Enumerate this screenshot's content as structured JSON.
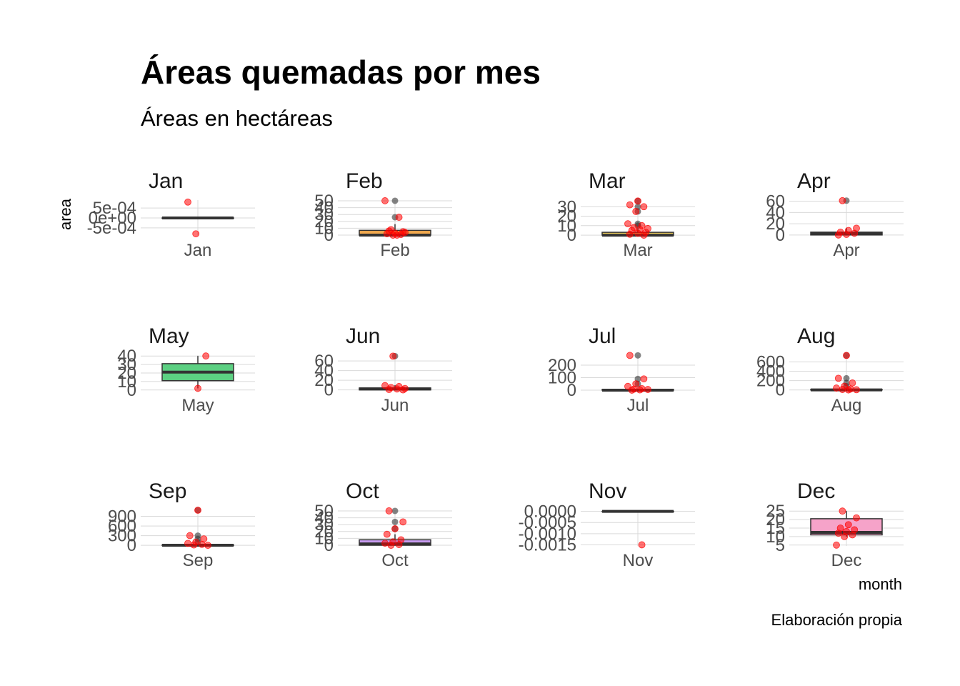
{
  "chart_data": {
    "type": "boxplot",
    "title": "Áreas quemadas por mes",
    "subtitle": "Áreas en hectáreas",
    "xlabel": "month",
    "ylabel": "area",
    "caption": "Elaboración propia",
    "facet_scales": "free",
    "grid": true,
    "point_color": "#ff0000",
    "outlier_color": "#333333",
    "panels": [
      {
        "month": "Jan",
        "fill": "#f8766d",
        "yticks": [
          "5e-04",
          "0e+00",
          "-5e-04"
        ],
        "ytick_values": [
          0.0005,
          0,
          -0.0005
        ],
        "ylim": [
          -0.0009,
          0.0009
        ],
        "box": {
          "min": 0,
          "q1": 0,
          "median": 0,
          "q3": 0,
          "max": 0
        },
        "outliers": [],
        "points": [
          0.0008,
          -0.0008
        ]
      },
      {
        "month": "Feb",
        "fill": "#f2a94e",
        "yticks": [
          "0",
          "10",
          "20",
          "30",
          "40",
          "50"
        ],
        "ytick_values": [
          0,
          10,
          20,
          30,
          40,
          50
        ],
        "ylim": [
          -1,
          51
        ],
        "box": {
          "min": 0,
          "q1": 0,
          "median": 0,
          "q3": 7,
          "max": 16
        },
        "outliers": [
          26,
          50
        ],
        "points": [
          0,
          1,
          2,
          3,
          5,
          6,
          0,
          4,
          8,
          26,
          50
        ]
      },
      {
        "month": "Mar",
        "fill": "#e8c95a",
        "yticks": [
          "0",
          "10",
          "20",
          "30"
        ],
        "ytick_values": [
          0,
          10,
          20,
          30
        ],
        "ylim": [
          -0.7,
          37
        ],
        "box": {
          "min": 0,
          "q1": 0,
          "median": 0,
          "q3": 3,
          "max": 7
        },
        "outliers": [
          10,
          12,
          25,
          30,
          36
        ],
        "points": [
          0,
          1,
          2,
          3,
          5,
          6,
          7,
          8,
          10,
          12,
          25,
          30,
          32,
          36
        ]
      },
      {
        "month": "Apr",
        "fill": "#b3d56b",
        "yticks": [
          "0",
          "20",
          "40",
          "60"
        ],
        "ytick_values": [
          0,
          20,
          40,
          60
        ],
        "ylim": [
          -1.5,
          62
        ],
        "box": {
          "min": 0,
          "q1": 0,
          "median": 2,
          "q3": 5,
          "max": 12
        },
        "outliers": [
          61
        ],
        "points": [
          0,
          1,
          3,
          5,
          8,
          12,
          61
        ]
      },
      {
        "month": "May",
        "fill": "#5cd082",
        "yticks": [
          "0",
          "10",
          "20",
          "30",
          "40"
        ],
        "ytick_values": [
          0,
          10,
          20,
          30,
          40
        ],
        "ylim": [
          -1,
          41
        ],
        "box": {
          "min": 2,
          "q1": 11,
          "median": 21,
          "q3": 31,
          "max": 40
        },
        "outliers": [],
        "points": [
          2,
          40
        ]
      },
      {
        "month": "Jun",
        "fill": "#4dc9a8",
        "yticks": [
          "0",
          "20",
          "40",
          "60"
        ],
        "ytick_values": [
          0,
          20,
          40,
          60
        ],
        "ylim": [
          -2,
          72
        ],
        "box": {
          "min": 0,
          "q1": 0,
          "median": 2,
          "q3": 4,
          "max": 10
        },
        "outliers": [
          70
        ],
        "points": [
          0,
          1,
          2,
          3,
          5,
          7,
          9,
          70
        ]
      },
      {
        "month": "Jul",
        "fill": "#45c3d4",
        "yticks": [
          "0",
          "100",
          "200"
        ],
        "ytick_values": [
          0,
          100,
          200
        ],
        "ylim": [
          -6,
          280
        ],
        "box": {
          "min": 0,
          "q1": 0,
          "median": 0,
          "q3": 5,
          "max": 12
        },
        "outliers": [
          50,
          90,
          278
        ],
        "points": [
          0,
          2,
          5,
          8,
          12,
          30,
          50,
          90,
          278
        ]
      },
      {
        "month": "Aug",
        "fill": "#5fa8e6",
        "yticks": [
          "0",
          "200",
          "400",
          "600"
        ],
        "ytick_values": [
          0,
          200,
          400,
          600
        ],
        "ylim": [
          -20,
          746
        ],
        "box": {
          "min": 0,
          "q1": 0,
          "median": 2,
          "q3": 10,
          "max": 25
        },
        "outliers": [
          80,
          150,
          250,
          740
        ],
        "points": [
          0,
          5,
          10,
          20,
          40,
          80,
          150,
          250,
          740
        ]
      },
      {
        "month": "Sep",
        "fill": "#8f8ff0",
        "yticks": [
          "0",
          "300",
          "600",
          "900"
        ],
        "ytick_values": [
          0,
          300,
          600,
          900
        ],
        "ylim": [
          -20,
          1090
        ],
        "box": {
          "min": 0,
          "q1": 0,
          "median": 2,
          "q3": 10,
          "max": 25
        },
        "outliers": [
          100,
          200,
          300,
          1090
        ],
        "points": [
          0,
          10,
          30,
          60,
          100,
          200,
          300,
          1090
        ]
      },
      {
        "month": "Oct",
        "fill": "#c79bf0",
        "yticks": [
          "0",
          "10",
          "20",
          "30",
          "40",
          "50"
        ],
        "ytick_values": [
          0,
          10,
          20,
          30,
          40,
          50
        ],
        "ylim": [
          -1,
          51
        ],
        "box": {
          "min": 0,
          "q1": 0,
          "median": 2,
          "q3": 8,
          "max": 16
        },
        "outliers": [
          24,
          34,
          50
        ],
        "points": [
          0,
          1,
          3,
          5,
          8,
          16,
          24,
          34,
          50
        ]
      },
      {
        "month": "Nov",
        "fill": "#ec8fd6",
        "yticks": [
          "0.0000",
          "-0.0005",
          "-0.0010",
          "-0.0015"
        ],
        "ytick_values": [
          0,
          -0.0005,
          -0.001,
          -0.0015
        ],
        "ylim": [
          -0.00155,
          5e-05
        ],
        "box": {
          "min": 0,
          "q1": 0,
          "median": 0,
          "q3": 0,
          "max": 0
        },
        "outliers": [],
        "points": [
          -0.0015
        ]
      },
      {
        "month": "Dec",
        "fill": "#f6a3c9",
        "yticks": [
          "5",
          "10",
          "15",
          "20",
          "25"
        ],
        "ytick_values": [
          5,
          10,
          15,
          20,
          25
        ],
        "ylim": [
          4.5,
          25.5
        ],
        "box": {
          "min": 10,
          "q1": 11,
          "median": 12.5,
          "q3": 20.5,
          "max": 25
        },
        "outliers": [],
        "points": [
          5,
          10,
          11,
          12,
          13,
          14,
          15,
          17,
          21,
          25
        ]
      }
    ]
  }
}
